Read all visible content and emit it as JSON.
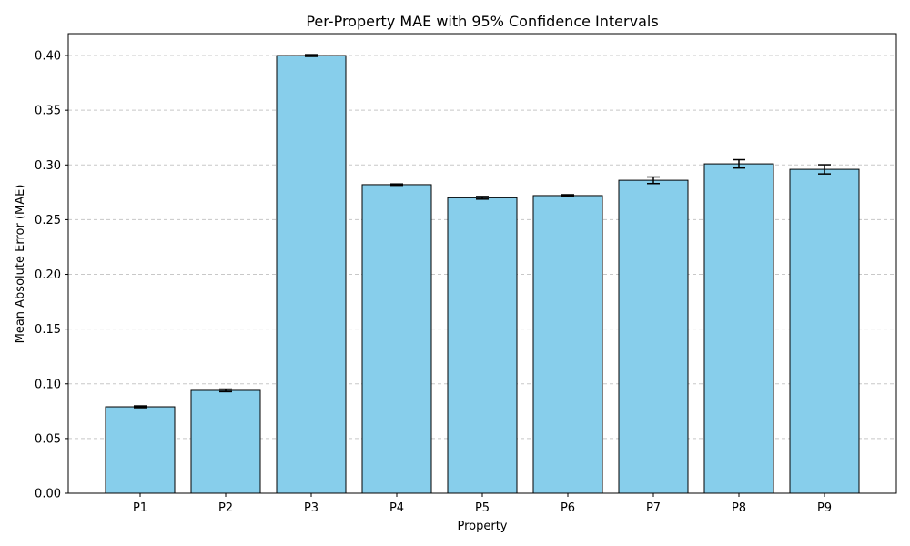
{
  "chart_data": {
    "type": "bar",
    "title": "Per-Property MAE with 95% Confidence Intervals",
    "xlabel": "Property",
    "ylabel": "Mean Absolute Error (MAE)",
    "categories": [
      "P1",
      "P2",
      "P3",
      "P4",
      "P5",
      "P6",
      "P7",
      "P8",
      "P9"
    ],
    "values": [
      0.079,
      0.094,
      0.4,
      0.282,
      0.27,
      0.272,
      0.286,
      0.301,
      0.296
    ],
    "errors": [
      0.0008,
      0.0012,
      0.0008,
      0.0006,
      0.0012,
      0.0008,
      0.003,
      0.0038,
      0.0042
    ],
    "ylim": [
      0,
      0.42
    ],
    "yticks": [
      "0.00",
      "0.05",
      "0.10",
      "0.15",
      "0.20",
      "0.25",
      "0.30",
      "0.35",
      "0.40"
    ],
    "grid": "y-dashed",
    "colors": {
      "bar_fill": "#87CEEB",
      "bar_edge": "#000000",
      "grid": "#c8c8c8"
    }
  }
}
